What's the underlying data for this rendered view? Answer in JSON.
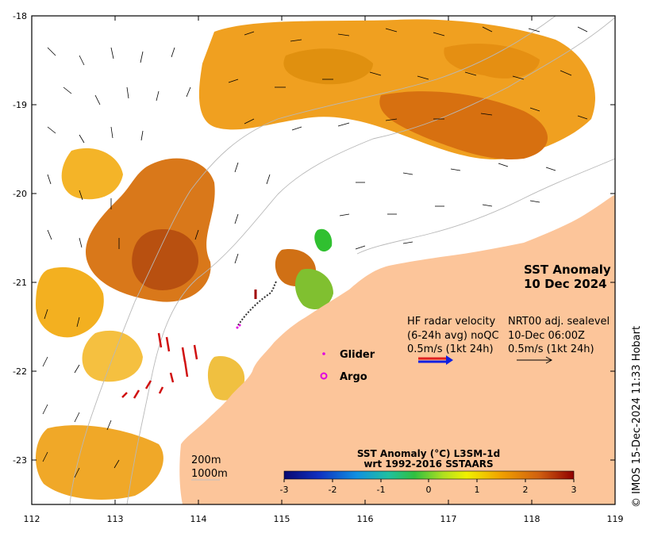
{
  "map": {
    "title_line1": "SST Anomaly",
    "title_line2": "10 Dec 2024",
    "credit": "© IMOS 15-Dec-2024 11:33 Hobart",
    "lon_ticks": [
      "112",
      "113",
      "114",
      "115",
      "116",
      "117",
      "118",
      "119"
    ],
    "lat_ticks": [
      "-18",
      "-19",
      "-20",
      "-21",
      "-22",
      "-23"
    ],
    "colors": {
      "land": "#fcc59a",
      "ocean": "#ffffff",
      "isobath": "#b0b0b0"
    }
  },
  "legend": {
    "glider_label": "Glider",
    "argo_label": "Argo",
    "glider_color": "#e000e0",
    "argo_color": "#e000e0",
    "hf_line1": "HF radar velocity",
    "hf_line2": "(6-24h avg) noQC",
    "hf_line3": "0.5m/s (1kt 24h)",
    "nrt_line1": "NRT00 adj. sealevel",
    "nrt_line2": "10-Dec 06:00Z",
    "nrt_line3": "0.5m/s (1kt 24h)",
    "isobath_200": "200m",
    "isobath_1000": "1000m"
  },
  "colorbar": {
    "title_line1": "SST Anomaly (°C) L3SM-1d",
    "title_line2": "wrt 1992-2016 SSTAARS",
    "ticks": [
      "-3",
      "-2",
      "-1",
      "0",
      "1",
      "2",
      "3"
    ],
    "range": [
      -3,
      3
    ]
  }
}
